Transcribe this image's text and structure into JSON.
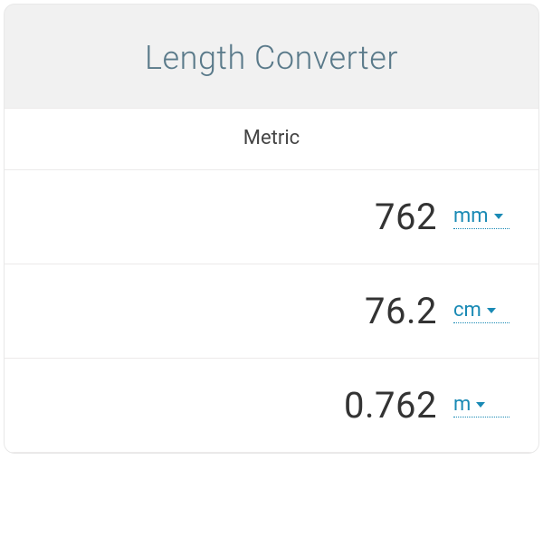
{
  "header": {
    "title": "Length Converter"
  },
  "section": {
    "label": "Metric"
  },
  "rows": [
    {
      "value": "762",
      "unit": "mm"
    },
    {
      "value": "76.2",
      "unit": "cm"
    },
    {
      "value": "0.762",
      "unit": "m"
    }
  ],
  "colors": {
    "card_background": "#f1f1f1",
    "row_background": "#ffffff",
    "border": "#eceaea",
    "title_color": "#5a7a8a",
    "value_color": "#333333",
    "link_color": "#1a8ab5"
  }
}
